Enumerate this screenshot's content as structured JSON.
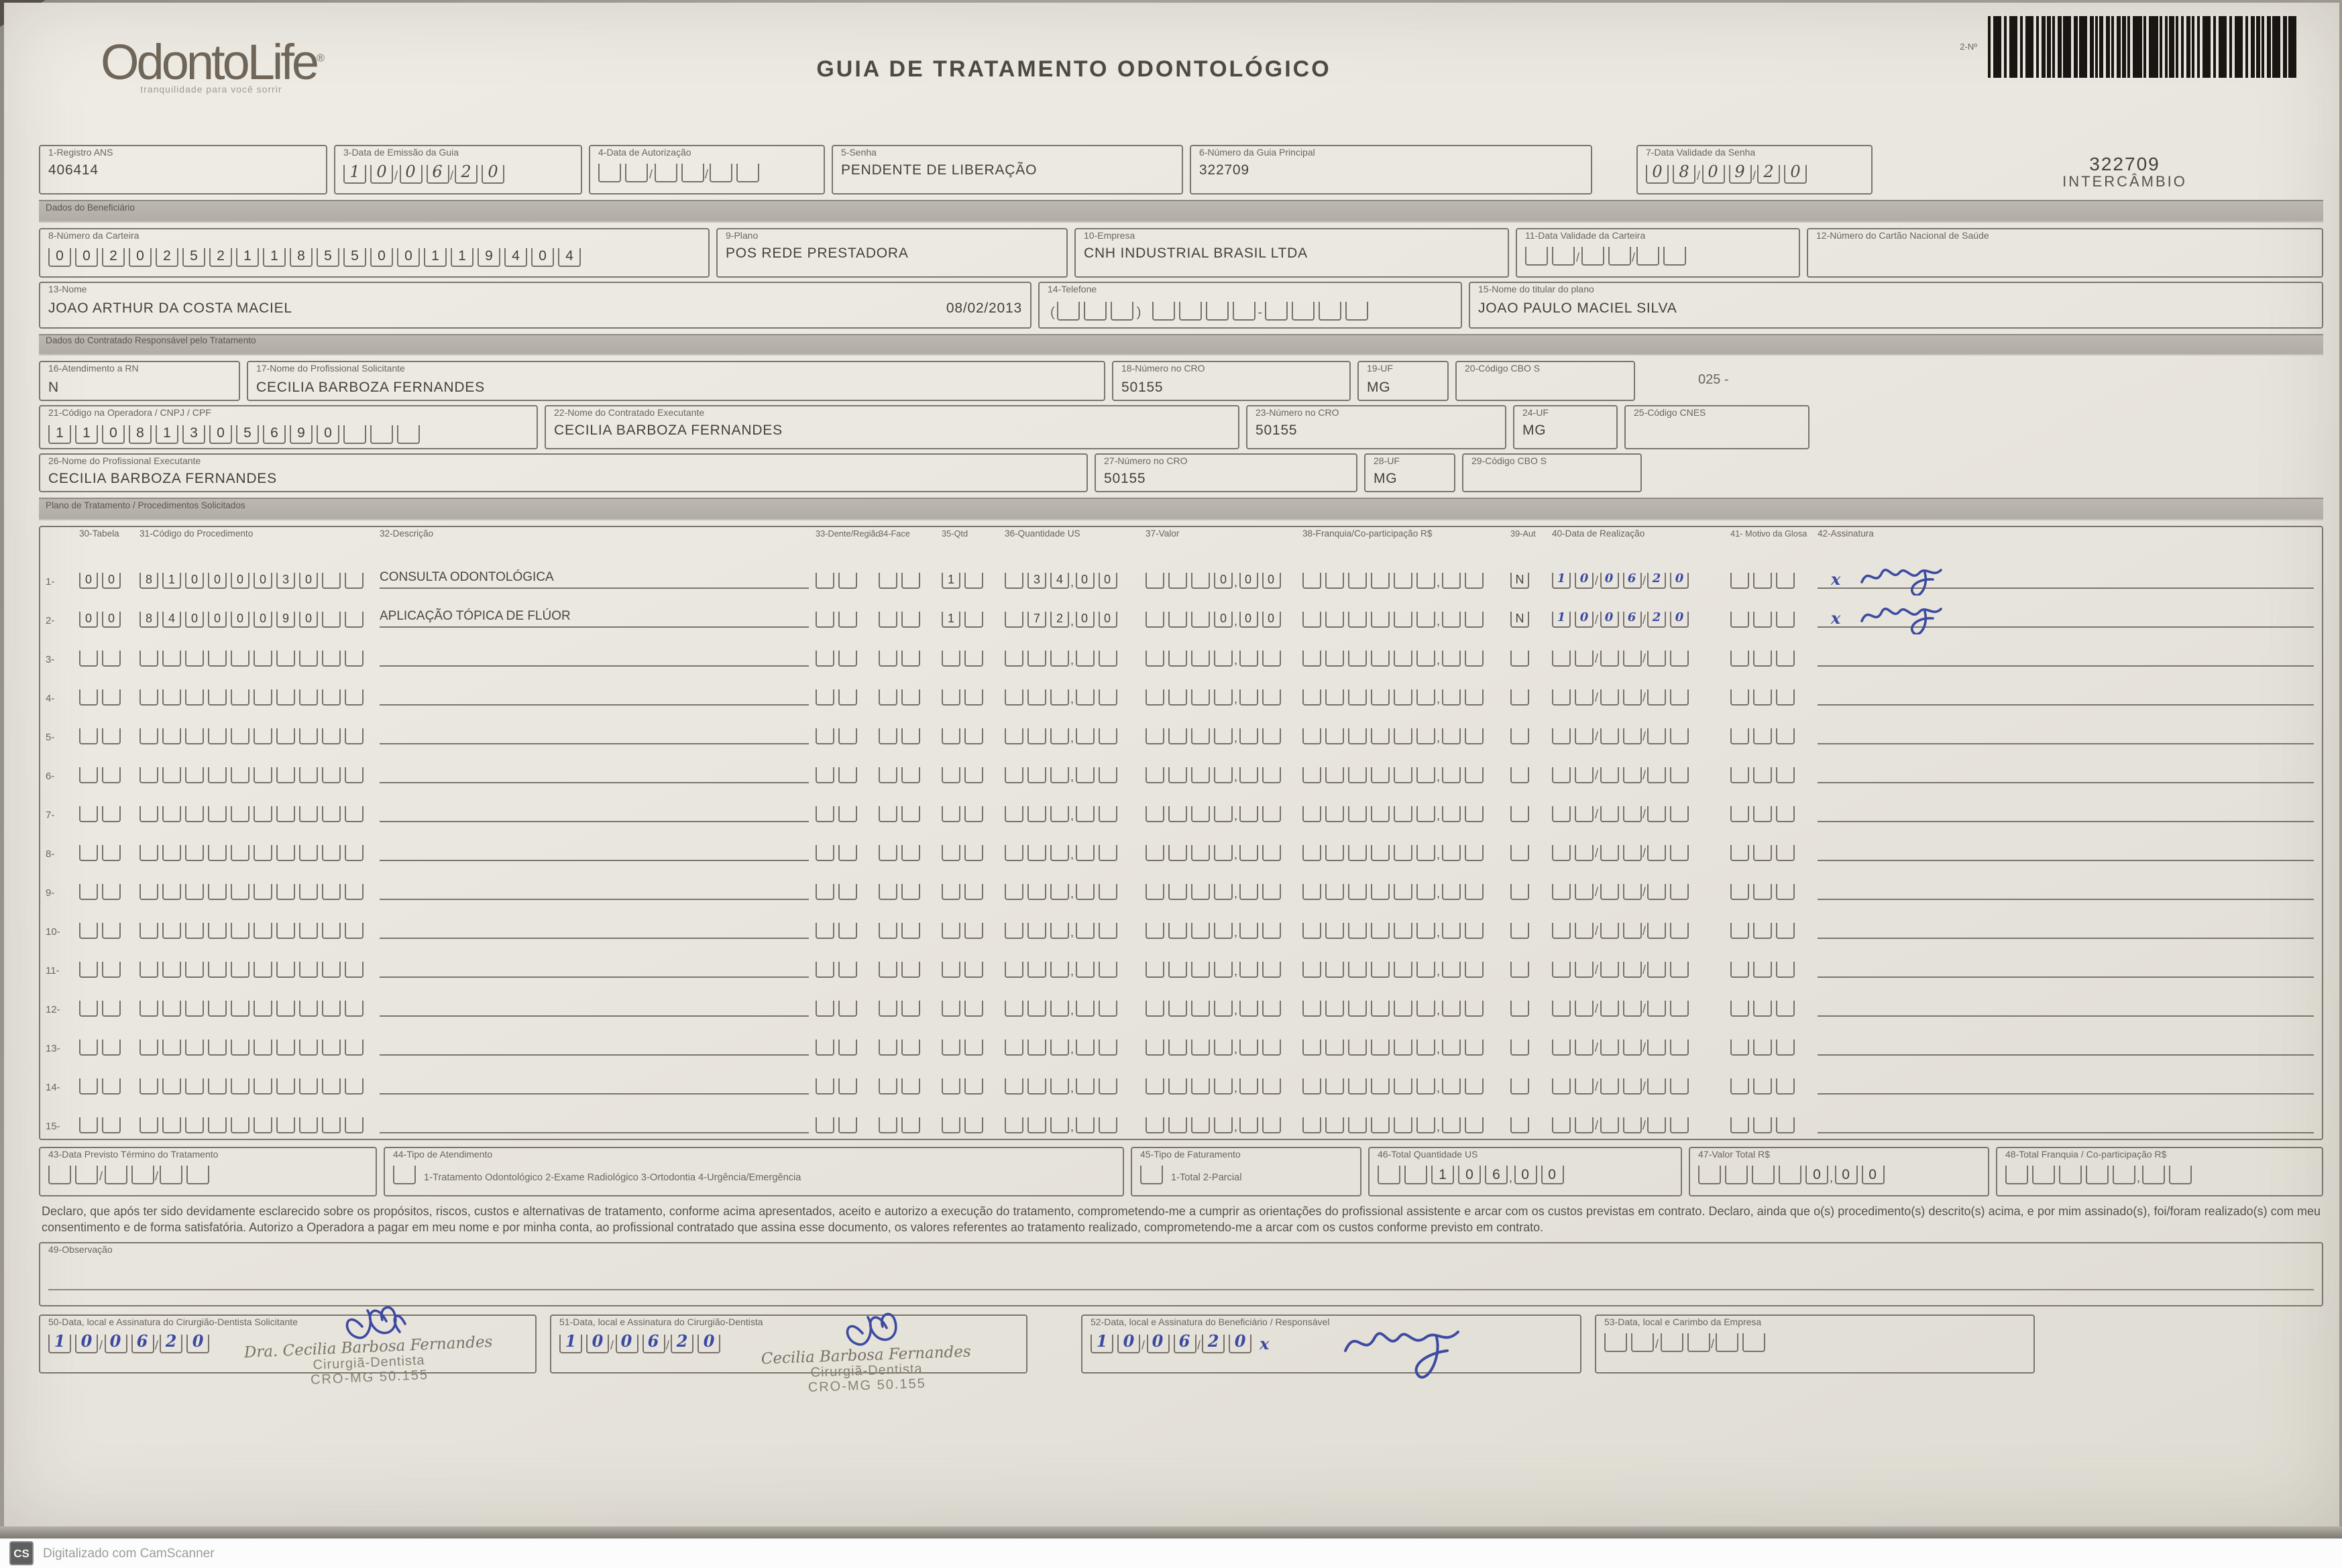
{
  "page": {
    "title": "GUIA DE TRATAMENTO ODONTOLÓGICO",
    "logo_name": "OdontoLife",
    "logo_reg": "®",
    "logo_tagline": "tranquilidade para você sorrir",
    "barcode_label": "2-Nº",
    "guide_number": "322709",
    "guide_type": "INTERCÂMBIO"
  },
  "sections": {
    "beneficiario": "Dados do Beneficiário",
    "contratado": "Dados do Contratado Responsável pelo Tratamento",
    "plano": "Plano de Tratamento / Procedimentos Solicitados"
  },
  "f1": {
    "label": "1-Registro ANS",
    "value": "406414"
  },
  "f3": {
    "label": "3-Data de Emissão da Guia",
    "d": "10",
    "m": "06",
    "y": "20"
  },
  "f4": {
    "label": "4-Data de Autorização",
    "d": "",
    "m": "",
    "y": ""
  },
  "f5": {
    "label": "5-Senha",
    "value": "PENDENTE DE LIBERAÇÃO"
  },
  "f6": {
    "label": "6-Número da Guia Principal",
    "value": "322709"
  },
  "f7": {
    "label": "7-Data Validade da Senha",
    "d": "08",
    "m": "09",
    "y": "20"
  },
  "f8": {
    "label": "8-Número da Carteira",
    "value": "00202521185500119404"
  },
  "f9": {
    "label": "9-Plano",
    "value": "POS REDE PRESTADORA"
  },
  "f10": {
    "label": "10-Empresa",
    "value": "CNH INDUSTRIAL BRASIL LTDA"
  },
  "f11": {
    "label": "11-Data Validade da Carteira",
    "d": "",
    "m": "",
    "y": ""
  },
  "f12": {
    "label": "12-Número do Cartão Nacional de Saúde",
    "value": ""
  },
  "f13": {
    "label": "13-Nome",
    "value": "JOAO ARTHUR DA COSTA MACIEL",
    "birthdate": "08/02/2013"
  },
  "f14": {
    "label": "14-Telefone",
    "ddd": "",
    "p1": "",
    "p2": ""
  },
  "f15": {
    "label": "15-Nome do titular do plano",
    "value": "JOAO PAULO MACIEL SILVA"
  },
  "f16": {
    "label": "16-Atendimento a RN",
    "value": "N"
  },
  "f17": {
    "label": "17-Nome do Profissional Solicitante",
    "value": "CECILIA BARBOZA FERNANDES"
  },
  "f18": {
    "label": "18-Número no CRO",
    "value": "50155"
  },
  "f19": {
    "label": "19-UF",
    "value": "MG"
  },
  "f20": {
    "label": "20-Código CBO S",
    "value": "",
    "note": "025 -"
  },
  "f21": {
    "label": "21-Código na Operadora / CNPJ / CPF",
    "value": "11081305690"
  },
  "f22": {
    "label": "22-Nome do Contratado Executante",
    "value": "CECILIA BARBOZA FERNANDES"
  },
  "f23": {
    "label": "23-Número no CRO",
    "value": "50155"
  },
  "f24": {
    "label": "24-UF",
    "value": "MG"
  },
  "f25": {
    "label": "25-Código CNES",
    "value": ""
  },
  "f26": {
    "label": "26-Nome do Profissional Executante",
    "value": "CECILIA BARBOZA FERNANDES"
  },
  "f27": {
    "label": "27-Número no CRO",
    "value": "50155"
  },
  "f28": {
    "label": "28-UF",
    "value": "MG"
  },
  "f29": {
    "label": "29-Código CBO S",
    "value": ""
  },
  "table": {
    "cols": {
      "c30": "30-Tabela",
      "c31": "31-Código do Procedimento",
      "c32": "32-Descrição",
      "c33": "33-Dente/Região",
      "c34": "34-Face",
      "c35": "35-Qtd",
      "c36": "36-Quantidade US",
      "c37": "37-Valor",
      "c38": "38-Franquia/Co-participação R$",
      "c39": "39-Aut",
      "c40": "40-Data de Realização",
      "c41": "41- Motivo da Glosa",
      "c42": "42-Assinatura"
    },
    "rows": [
      {
        "n": "1-",
        "tabela": "00",
        "codigo": "81000030",
        "descricao": "CONSULTA ODONTOLÓGICA",
        "dente": "",
        "face": "",
        "qtd": "1",
        "us_int": " 34",
        "us_dec": "00",
        "val_int": "   0",
        "val_dec": "00",
        "fr_int": "",
        "fr_dec": "",
        "aut": "N",
        "d": "10",
        "m": "06",
        "y": "20",
        "motivo": "",
        "sig": "x"
      },
      {
        "n": "2-",
        "tabela": "00",
        "codigo": "84000090",
        "descricao": "APLICAÇÃO TÓPICA DE FLÚOR",
        "dente": "",
        "face": "",
        "qtd": "1",
        "us_int": " 72",
        "us_dec": "00",
        "val_int": "   0",
        "val_dec": "00",
        "fr_int": "",
        "fr_dec": "",
        "aut": "N",
        "d": "10",
        "m": "06",
        "y": "20",
        "motivo": "",
        "sig": "x"
      },
      {
        "n": "3-",
        "tabela": "",
        "codigo": "",
        "descricao": "",
        "dente": "",
        "face": "",
        "qtd": "",
        "us_int": "",
        "us_dec": "",
        "val_int": "",
        "val_dec": "",
        "fr_int": "",
        "fr_dec": "",
        "aut": "",
        "d": "",
        "m": "",
        "y": "",
        "motivo": "",
        "sig": ""
      },
      {
        "n": "4-",
        "tabela": "",
        "codigo": "",
        "descricao": "",
        "dente": "",
        "face": "",
        "qtd": "",
        "us_int": "",
        "us_dec": "",
        "val_int": "",
        "val_dec": "",
        "fr_int": "",
        "fr_dec": "",
        "aut": "",
        "d": "",
        "m": "",
        "y": "",
        "motivo": "",
        "sig": ""
      },
      {
        "n": "5-",
        "tabela": "",
        "codigo": "",
        "descricao": "",
        "dente": "",
        "face": "",
        "qtd": "",
        "us_int": "",
        "us_dec": "",
        "val_int": "",
        "val_dec": "",
        "fr_int": "",
        "fr_dec": "",
        "aut": "",
        "d": "",
        "m": "",
        "y": "",
        "motivo": "",
        "sig": ""
      },
      {
        "n": "6-",
        "tabela": "",
        "codigo": "",
        "descricao": "",
        "dente": "",
        "face": "",
        "qtd": "",
        "us_int": "",
        "us_dec": "",
        "val_int": "",
        "val_dec": "",
        "fr_int": "",
        "fr_dec": "",
        "aut": "",
        "d": "",
        "m": "",
        "y": "",
        "motivo": "",
        "sig": ""
      },
      {
        "n": "7-",
        "tabela": "",
        "codigo": "",
        "descricao": "",
        "dente": "",
        "face": "",
        "qtd": "",
        "us_int": "",
        "us_dec": "",
        "val_int": "",
        "val_dec": "",
        "fr_int": "",
        "fr_dec": "",
        "aut": "",
        "d": "",
        "m": "",
        "y": "",
        "motivo": "",
        "sig": ""
      },
      {
        "n": "8-",
        "tabela": "",
        "codigo": "",
        "descricao": "",
        "dente": "",
        "face": "",
        "qtd": "",
        "us_int": "",
        "us_dec": "",
        "val_int": "",
        "val_dec": "",
        "fr_int": "",
        "fr_dec": "",
        "aut": "",
        "d": "",
        "m": "",
        "y": "",
        "motivo": "",
        "sig": ""
      },
      {
        "n": "9-",
        "tabela": "",
        "codigo": "",
        "descricao": "",
        "dente": "",
        "face": "",
        "qtd": "",
        "us_int": "",
        "us_dec": "",
        "val_int": "",
        "val_dec": "",
        "fr_int": "",
        "fr_dec": "",
        "aut": "",
        "d": "",
        "m": "",
        "y": "",
        "motivo": "",
        "sig": ""
      },
      {
        "n": "10-",
        "tabela": "",
        "codigo": "",
        "descricao": "",
        "dente": "",
        "face": "",
        "qtd": "",
        "us_int": "",
        "us_dec": "",
        "val_int": "",
        "val_dec": "",
        "fr_int": "",
        "fr_dec": "",
        "aut": "",
        "d": "",
        "m": "",
        "y": "",
        "motivo": "",
        "sig": ""
      },
      {
        "n": "11-",
        "tabela": "",
        "codigo": "",
        "descricao": "",
        "dente": "",
        "face": "",
        "qtd": "",
        "us_int": "",
        "us_dec": "",
        "val_int": "",
        "val_dec": "",
        "fr_int": "",
        "fr_dec": "",
        "aut": "",
        "d": "",
        "m": "",
        "y": "",
        "motivo": "",
        "sig": ""
      },
      {
        "n": "12-",
        "tabela": "",
        "codigo": "",
        "descricao": "",
        "dente": "",
        "face": "",
        "qtd": "",
        "us_int": "",
        "us_dec": "",
        "val_int": "",
        "val_dec": "",
        "fr_int": "",
        "fr_dec": "",
        "aut": "",
        "d": "",
        "m": "",
        "y": "",
        "motivo": "",
        "sig": ""
      },
      {
        "n": "13-",
        "tabela": "",
        "codigo": "",
        "descricao": "",
        "dente": "",
        "face": "",
        "qtd": "",
        "us_int": "",
        "us_dec": "",
        "val_int": "",
        "val_dec": "",
        "fr_int": "",
        "fr_dec": "",
        "aut": "",
        "d": "",
        "m": "",
        "y": "",
        "motivo": "",
        "sig": ""
      },
      {
        "n": "14-",
        "tabela": "",
        "codigo": "",
        "descricao": "",
        "dente": "",
        "face": "",
        "qtd": "",
        "us_int": "",
        "us_dec": "",
        "val_int": "",
        "val_dec": "",
        "fr_int": "",
        "fr_dec": "",
        "aut": "",
        "d": "",
        "m": "",
        "y": "",
        "motivo": "",
        "sig": ""
      },
      {
        "n": "15-",
        "tabela": "",
        "codigo": "",
        "descricao": "",
        "dente": "",
        "face": "",
        "qtd": "",
        "us_int": "",
        "us_dec": "",
        "val_int": "",
        "val_dec": "",
        "fr_int": "",
        "fr_dec": "",
        "aut": "",
        "d": "",
        "m": "",
        "y": "",
        "motivo": "",
        "sig": ""
      }
    ]
  },
  "f43": {
    "label": "43-Data Previsto Término do Tratamento",
    "d": "",
    "m": "",
    "y": ""
  },
  "f44": {
    "label": "44-Tipo de Atendimento",
    "value": "",
    "options": "1-Tratamento Odontológico  2-Exame Radiológico  3-Ortodontia  4-Urgência/Emergência"
  },
  "f45": {
    "label": "45-Tipo de Faturamento",
    "value": "",
    "options": "1-Total  2-Parcial"
  },
  "f46": {
    "label": "46-Total Quantidade US",
    "int": "  106",
    "dec": "00"
  },
  "f47": {
    "label": "47-Valor Total R$",
    "int": "    0",
    "dec": "00"
  },
  "f48": {
    "label": "48-Total Franquia / Co-participação R$",
    "int": "",
    "dec": ""
  },
  "declaration": "Declaro, que após ter sido devidamente esclarecido sobre os propósitos, riscos, custos e alternativas de tratamento, conforme acima apresentados, aceito e autorizo a execução do tratamento, comprometendo-me a cumprir as orientações do profissional assistente e arcar com os custos previstas em contrato. Declaro, ainda que o(s) procedimento(s) descrito(s) acima, e por mim assinado(s), foi/foram realizado(s) com meu consentimento e de forma satisfatória. Autorizo a Operadora a pagar em meu nome e por minha conta, ao profissional contratado que assina esse documento, os valores referentes ao tratamento realizado, comprometendo-me a arcar com os custos conforme previsto em contrato.",
  "f49": {
    "label": "49-Observação",
    "value": ""
  },
  "f50": {
    "label": "50-Data, local e Assinatura do Cirurgião-Dentista Solicitante",
    "d": "10",
    "m": "06",
    "y": "20"
  },
  "f51": {
    "label": "51-Data, local e Assinatura do Cirurgião-Dentista",
    "d": "10",
    "m": "06",
    "y": "20"
  },
  "f52": {
    "label": "52-Data, local e Assinatura do Beneficiário / Responsável",
    "d": "10",
    "m": "06",
    "y": "20",
    "mark": "x"
  },
  "f53": {
    "label": "53-Data, local e Carimbo da Empresa",
    "d": "",
    "m": "",
    "y": ""
  },
  "stamp_solicitante": {
    "line1": "Dra. Cecilia Barbosa Fernandes",
    "line2": "Cirurgiã-Dentista",
    "line3": "CRO-MG 50.155"
  },
  "stamp_executante": {
    "line1": "Cecilia Barbosa Fernandes",
    "line2": "Cirurgiã-Dentista",
    "line3": "CRO-MG 50.155"
  },
  "footer": {
    "scanner_icon": "CS",
    "scanner_text": "Digitalizado com CamScanner"
  }
}
